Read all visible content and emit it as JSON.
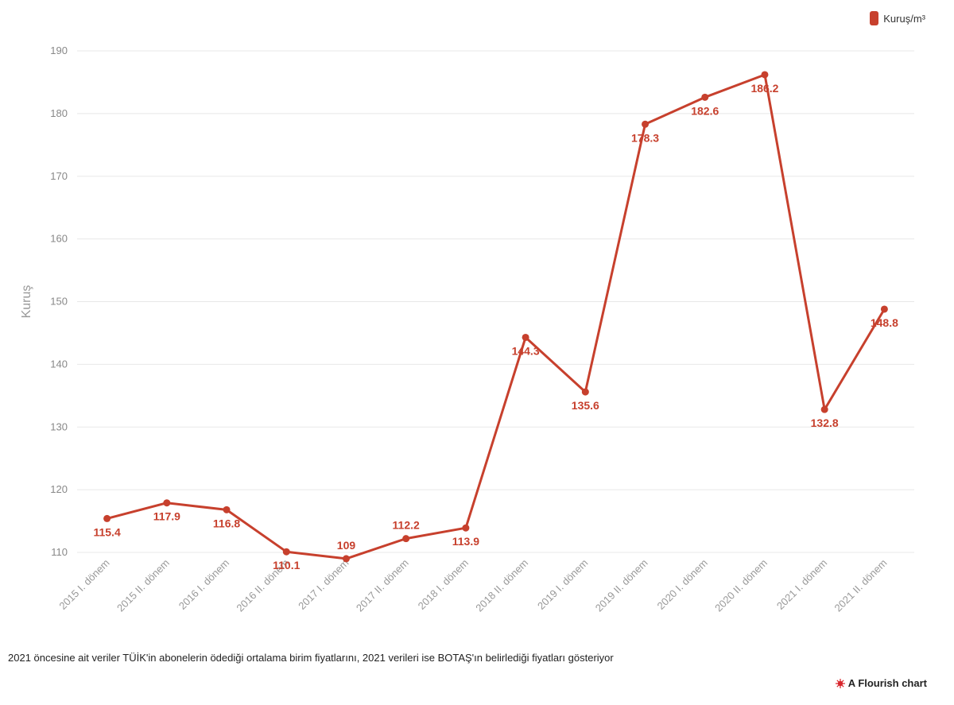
{
  "legend": {
    "label": "Kuruş/m³",
    "color": "#c7402d"
  },
  "footnote": "2021 öncesine ait veriler TÜİK'in abonelerin ödediği ortalama birim fiyatlarını, 2021 verileri ise BOTAŞ'ın belirlediği fiyatları gösteriyor",
  "credit": {
    "text": "A Flourish chart",
    "icon": "flourish-logo-icon"
  },
  "chart_data": {
    "type": "line",
    "title": "",
    "xlabel": "",
    "ylabel": "Kuruş",
    "ylim": [
      110,
      190
    ],
    "yticks": [
      110,
      120,
      130,
      140,
      150,
      160,
      170,
      180,
      190
    ],
    "grid": true,
    "legend_position": "top-right",
    "color": "#c7402d",
    "categories": [
      "2015 I. dönem",
      "2015 II. dönem",
      "2016 I. dönem",
      "2016 II. dönem",
      "2017 I. dönem",
      "2017 II. dönem",
      "2018 I. dönem",
      "2018 II. dönem",
      "2019 I. dönem",
      "2019 II. dönem",
      "2020 I. dönem",
      "2020 II. dönem",
      "2021 I. dönem",
      "2021 II. dönem"
    ],
    "series": [
      {
        "name": "Kuruş/m³",
        "values": [
          115.4,
          117.9,
          116.8,
          110.1,
          109,
          112.2,
          113.9,
          144.3,
          135.6,
          178.3,
          182.6,
          186.2,
          132.8,
          148.8
        ]
      }
    ],
    "data_labels": [
      "115.4",
      "117.9",
      "116.8",
      "110.1",
      "109",
      "112.2",
      "113.9",
      "144.3",
      "135.6",
      "178.3",
      "182.6",
      "186.2",
      "132.8",
      "148.8"
    ]
  }
}
